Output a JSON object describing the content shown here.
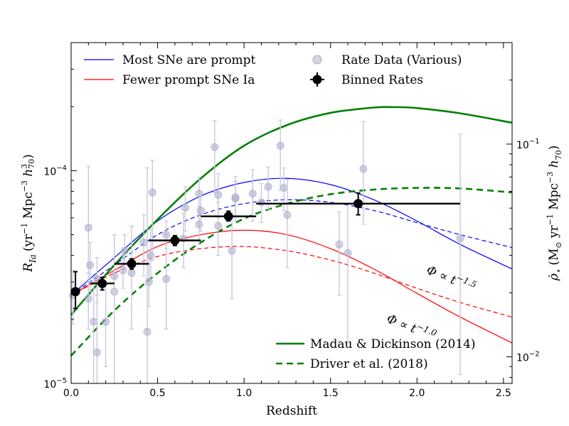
{
  "chart_data": {
    "type": "scatter",
    "xlabel": "Redshift",
    "ylabel_left": "R",
    "ylabel_left_sub": "Ia",
    "ylabel_left_units": "(yr",
    "ylabel_left_units2": " Mpc",
    "ylabel_left_units3": " h",
    "ylabel_left_units4": ")",
    "ylabel_right": "ρ̇",
    "ylabel_right_sub": "⋆",
    "ylabel_right_units": "(M",
    "ylabel_right_units2": " yr",
    "ylabel_right_units3": " Mpc",
    "ylabel_right_units4": " h",
    "ylabel_right_units5": ")",
    "xlim": [
      0,
      2.55
    ],
    "ylim_left": [
      1e-05,
      0.0004
    ],
    "ylim_right": [
      0.0075,
      0.3
    ],
    "yscale": "log",
    "xticks": [
      "0.0",
      "0.5",
      "1.0",
      "1.5",
      "2.0",
      "2.5"
    ],
    "yticks_left": [
      {
        "base": "10",
        "exp": "−5"
      },
      {
        "base": "10",
        "exp": "−4"
      }
    ],
    "yticks_right": [
      {
        "base": "10",
        "exp": "−2"
      },
      {
        "base": "10",
        "exp": "−1"
      }
    ],
    "legend_top": [
      {
        "label": "Most SNe are prompt",
        "color": "#0000ff",
        "style": "solid-thin"
      },
      {
        "label": "Fewer prompt SNe Ia",
        "color": "#ff0000",
        "style": "solid-thin"
      },
      {
        "label": "Rate Data (Various)",
        "color": "#aaaacc",
        "style": "marker-light"
      },
      {
        "label": "Binned Rates",
        "color": "#000000",
        "style": "marker-black"
      }
    ],
    "legend_bottom": [
      {
        "label": "Madau & Dickinson (2014)",
        "color": "#008000",
        "style": "solid-thick"
      },
      {
        "label": "Driver et al. (2018)",
        "color": "#008000",
        "style": "dashed-thick"
      }
    ],
    "annotations": [
      {
        "text": "Φ ∝ t",
        "exp": "−1.5",
        "x": 2.05,
        "y": 3.3e-05,
        "angle": 22
      },
      {
        "text": "Φ ∝ t",
        "exp": "−1.0",
        "x": 1.82,
        "y": 1.95e-05,
        "angle": 22
      }
    ],
    "rate_data": [
      {
        "x": 0.01,
        "y": 2.6e-05,
        "lo": 1.9e-05,
        "hi": 3.4e-05
      },
      {
        "x": 0.1,
        "y": 5.4e-05,
        "lo": 3e-05,
        "hi": 0.000105
      },
      {
        "x": 0.1,
        "y": 2.5e-05,
        "lo": 1.8e-05,
        "hi": 3.3e-05
      },
      {
        "x": 0.11,
        "y": 3.6e-05,
        "lo": 2.7e-05,
        "hi": 4.6e-05
      },
      {
        "x": 0.13,
        "y": 1.95e-05,
        "lo": 1e-05,
        "hi": 3e-05
      },
      {
        "x": 0.15,
        "y": 1.4e-05,
        "lo": 1e-05,
        "hi": 2.6e-05
      },
      {
        "x": 0.15,
        "y": 3.1e-05,
        "lo": 2.4e-05,
        "hi": 3.9e-05
      },
      {
        "x": 0.2,
        "y": 1.95e-05,
        "lo": 1.2e-05,
        "hi": 2.9e-05
      },
      {
        "x": 0.25,
        "y": 2.7e-05,
        "lo": 1e-05,
        "hi": 5e-05
      },
      {
        "x": 0.25,
        "y": 3.2e-05,
        "lo": 2.6e-05,
        "hi": 3.9e-05
      },
      {
        "x": 0.3,
        "y": 3.4e-05,
        "lo": 2.8e-05,
        "hi": 4e-05
      },
      {
        "x": 0.31,
        "y": 4.2e-05,
        "lo": 3.4e-05,
        "hi": 5e-05
      },
      {
        "x": 0.35,
        "y": 3.3e-05,
        "lo": 1.8e-05,
        "hi": 5.5e-05
      },
      {
        "x": 0.42,
        "y": 4.6e-05,
        "lo": 3.2e-05,
        "hi": 6.2e-05
      },
      {
        "x": 0.44,
        "y": 1.75e-05,
        "lo": 1e-05,
        "hi": 0.000103
      },
      {
        "x": 0.45,
        "y": 3e-05,
        "lo": 2.3e-05,
        "hi": 4e-05
      },
      {
        "x": 0.46,
        "y": 4e-05,
        "lo": 3e-05,
        "hi": 5.3e-05
      },
      {
        "x": 0.47,
        "y": 7.9e-05,
        "lo": 3.8e-05,
        "hi": 0.000112
      },
      {
        "x": 0.55,
        "y": 3.1e-05,
        "lo": 1.8e-05,
        "hi": 5e-05
      },
      {
        "x": 0.55,
        "y": 5e-05,
        "lo": 4.3e-05,
        "hi": 5.8e-05
      },
      {
        "x": 0.65,
        "y": 4.8e-05,
        "lo": 3.5e-05,
        "hi": 6.3e-05
      },
      {
        "x": 0.66,
        "y": 6.7e-05,
        "lo": 5.2e-05,
        "hi": 8.4e-05
      },
      {
        "x": 0.74,
        "y": 5.6e-05,
        "lo": 4.5e-05,
        "hi": 6.8e-05
      },
      {
        "x": 0.74,
        "y": 7.8e-05,
        "lo": 6.3e-05,
        "hi": 9.3e-05
      },
      {
        "x": 0.75,
        "y": 6.5e-05,
        "lo": 5.2e-05,
        "hi": 7.9e-05
      },
      {
        "x": 0.83,
        "y": 0.000129,
        "lo": 7.9e-05,
        "hi": 0.000172
      },
      {
        "x": 0.85,
        "y": 5.5e-05,
        "lo": 4e-05,
        "hi": 7.1e-05
      },
      {
        "x": 0.85,
        "y": 7.7e-05,
        "lo": 6e-05,
        "hi": 9.7e-05
      },
      {
        "x": 0.93,
        "y": 4.2e-05,
        "lo": 2.5e-05,
        "hi": 6.1e-05
      },
      {
        "x": 0.95,
        "y": 7.5e-05,
        "lo": 5.8e-05,
        "hi": 9.4e-05
      },
      {
        "x": 0.95,
        "y": 7.4e-05,
        "lo": 6e-05,
        "hi": 8.9e-05
      },
      {
        "x": 1.05,
        "y": 7.8e-05,
        "lo": 5.8e-05,
        "hi": 0.000101
      },
      {
        "x": 1.1,
        "y": 7.1e-05,
        "lo": 5.7e-05,
        "hi": 8.7e-05
      },
      {
        "x": 1.14,
        "y": 8.4e-05,
        "lo": 6.6e-05,
        "hi": 0.000104
      },
      {
        "x": 1.21,
        "y": 0.000131,
        "lo": 8.1e-05,
        "hi": 0.000173
      },
      {
        "x": 1.23,
        "y": 8.3e-05,
        "lo": 6.5e-05,
        "hi": 0.000103
      },
      {
        "x": 1.25,
        "y": 6.2e-05,
        "lo": 3.5e-05,
        "hi": 9.1e-05
      },
      {
        "x": 1.55,
        "y": 4.5e-05,
        "lo": 2.6e-05,
        "hi": 6.4e-05
      },
      {
        "x": 1.6,
        "y": 4.1e-05,
        "lo": 1.55e-05,
        "hi": 7e-05
      },
      {
        "x": 1.69,
        "y": 0.000102,
        "lo": 5.6e-05,
        "hi": 0.00017
      },
      {
        "x": 2.25,
        "y": 4.8e-05,
        "lo": 1.1e-05,
        "hi": 0.000149
      }
    ],
    "binned_rates": [
      {
        "x": 0.025,
        "xerr": 0.0,
        "y": 2.7e-05,
        "lo": 2.25e-05,
        "hi": 3.35e-05
      },
      {
        "x": 0.18,
        "xerr": 0.07,
        "y": 2.95e-05,
        "lo": 2.75e-05,
        "hi": 3.15e-05
      },
      {
        "x": 0.35,
        "xerr": 0.1,
        "y": 3.65e-05,
        "lo": 3.45e-05,
        "hi": 3.85e-05
      },
      {
        "x": 0.6,
        "xerr": 0.15,
        "y": 4.7e-05,
        "lo": 4.45e-05,
        "hi": 4.95e-05
      },
      {
        "x": 0.91,
        "xerr": 0.16,
        "y": 6.1e-05,
        "lo": 5.8e-05,
        "hi": 6.45e-05
      },
      {
        "x": 1.66,
        "xerr": 0.59,
        "y": 7e-05,
        "lo": 6.2e-05,
        "hi": 7.85e-05
      }
    ],
    "curves": [
      {
        "name": "Most SNe are prompt",
        "color": "#0000ff",
        "width": 1.2,
        "dash": "",
        "axis": "left",
        "x": [
          0,
          0.25,
          0.5,
          0.75,
          1.0,
          1.25,
          1.5,
          1.75,
          2.0,
          2.25,
          2.55
        ],
        "y": [
          2.6e-05,
          3.9e-05,
          5.8e-05,
          7.6e-05,
          8.8e-05,
          9.2e-05,
          8.6e-05,
          7.3e-05,
          5.8e-05,
          4.5e-05,
          3.45e-05
        ]
      },
      {
        "name": "",
        "color": "#0000ff",
        "width": 1.2,
        "dash": "6,4",
        "axis": "left",
        "x": [
          0,
          0.25,
          0.5,
          0.75,
          1.0,
          1.25,
          1.5,
          1.75,
          2.0,
          2.25,
          2.55
        ],
        "y": [
          2.6e-05,
          3.6e-05,
          5e-05,
          6.2e-05,
          7e-05,
          7.3e-05,
          7.1e-05,
          6.5e-05,
          5.7e-05,
          5e-05,
          4.35e-05
        ]
      },
      {
        "name": "Fewer prompt SNe Ia",
        "color": "#ff0000",
        "width": 1.2,
        "dash": "",
        "axis": "left",
        "x": [
          0,
          0.25,
          0.5,
          0.75,
          1.0,
          1.25,
          1.5,
          1.75,
          2.0,
          2.25,
          2.55
        ],
        "y": [
          2.6e-05,
          3.4e-05,
          4.4e-05,
          5e-05,
          5.25e-05,
          5e-05,
          4.3e-05,
          3.45e-05,
          2.65e-05,
          2.05e-05,
          1.55e-05
        ]
      },
      {
        "name": "",
        "color": "#ff0000",
        "width": 1.2,
        "dash": "6,4",
        "axis": "left",
        "x": [
          0,
          0.25,
          0.5,
          0.75,
          1.0,
          1.25,
          1.5,
          1.75,
          2.0,
          2.25,
          2.55
        ],
        "y": [
          2.6e-05,
          3.3e-05,
          3.95e-05,
          4.3e-05,
          4.4e-05,
          4.2e-05,
          3.8e-05,
          3.3e-05,
          2.8e-05,
          2.4e-05,
          2.05e-05
        ]
      },
      {
        "name": "Madau & Dickinson (2014)",
        "color": "#008000",
        "width": 2.6,
        "dash": "",
        "axis": "left",
        "x": [
          0,
          0.25,
          0.5,
          0.75,
          1.0,
          1.25,
          1.5,
          1.75,
          1.85,
          2.0,
          2.25,
          2.55
        ],
        "y": [
          2.1e-05,
          3.6e-05,
          5.9e-05,
          9.2e-05,
          0.000131,
          0.000164,
          0.000187,
          0.000198,
          0.000199,
          0.000197,
          0.000186,
          0.000168
        ]
      },
      {
        "name": "Driver et al. (2018)",
        "color": "#008000",
        "width": 2.6,
        "dash": "9,6",
        "axis": "left",
        "x": [
          0,
          0.25,
          0.5,
          0.75,
          1.0,
          1.25,
          1.5,
          1.75,
          2.0,
          2.25,
          2.55
        ],
        "y": [
          1.35e-05,
          2.2e-05,
          3.3e-05,
          4.6e-05,
          5.95e-05,
          7e-05,
          7.75e-05,
          8.15e-05,
          8.3e-05,
          8.25e-05,
          7.9e-05
        ]
      }
    ]
  }
}
